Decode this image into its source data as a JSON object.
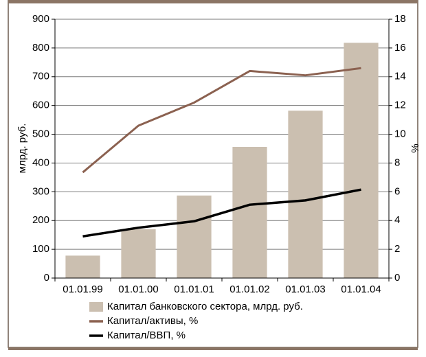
{
  "chart_data": {
    "type": "combo",
    "categories": [
      "01.01.99",
      "01.01.00",
      "01.01.01",
      "01.01.02",
      "01.01.03",
      "01.01.04"
    ],
    "ylabel": "млрд. руб.",
    "y2label": "%",
    "ylim": [
      0,
      900
    ],
    "yticks": [
      0,
      100,
      200,
      300,
      400,
      500,
      600,
      700,
      800,
      900
    ],
    "y2lim": [
      0,
      18
    ],
    "y2ticks": [
      0,
      2,
      4,
      6,
      8,
      10,
      12,
      14,
      16,
      18
    ],
    "grid": true,
    "series": [
      {
        "name": "Капитал банковского сектора, млрд. руб.",
        "type": "bar",
        "color": "#cbbfb0",
        "values": [
          78,
          170,
          287,
          456,
          582,
          818
        ]
      },
      {
        "name": "Капитал/активы, %",
        "type": "line",
        "axis": "y2",
        "color": "#8b6150",
        "values": [
          7.35,
          10.6,
          12.2,
          14.4,
          14.1,
          14.6
        ]
      },
      {
        "name": "Капитал/ВВП, %",
        "type": "line",
        "axis": "y2",
        "color": "#000000",
        "values": [
          2.9,
          3.5,
          3.95,
          5.1,
          5.4,
          6.15
        ]
      }
    ]
  }
}
